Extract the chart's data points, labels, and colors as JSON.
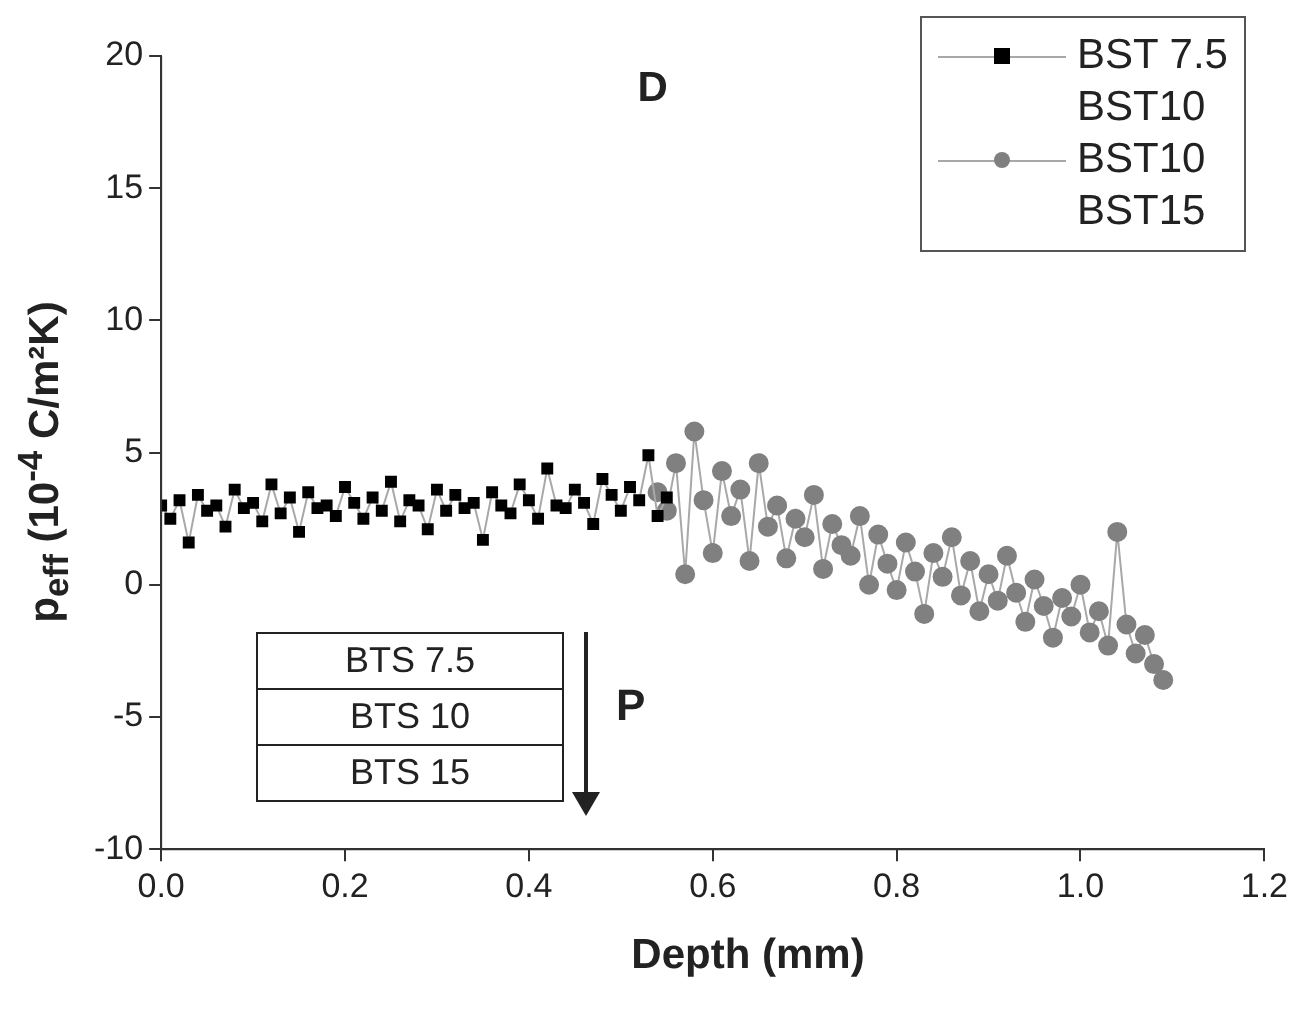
{
  "chart_data": {
    "type": "line",
    "title": "D",
    "xlabel": "Depth (mm)",
    "ylabel": "p$_{eff}$ (10$^{-4}$ C/m²K)",
    "annotations": [
      "BTS 7.5",
      "BTS 10",
      "BTS 15",
      "P"
    ],
    "xlim": [
      0,
      1.2
    ],
    "xticks": [
      {
        "value": 0,
        "label": "0.0"
      },
      {
        "value": 0.2,
        "label": "0.2"
      },
      {
        "value": 0.4,
        "label": "0.4"
      },
      {
        "value": 0.6,
        "label": "0.6"
      },
      {
        "value": 0.8,
        "label": "0.8"
      },
      {
        "value": 1,
        "label": "1.0"
      },
      {
        "value": 1.2,
        "label": "1.2"
      }
    ],
    "ylim": [
      -10,
      20
    ],
    "yticks": [
      -10,
      -5,
      0,
      5,
      10,
      15,
      20
    ],
    "grid": false,
    "legend": "top right",
    "line_style": "solid",
    "series": [
      {
        "name": "BST 7.5\nBST10",
        "color": "#000000",
        "marker": "square",
        "x": [
          0,
          0.01,
          0.02,
          0.03,
          0.04,
          0.05,
          0.06,
          0.07,
          0.08,
          0.09,
          0.1,
          0.11,
          0.12,
          0.13,
          0.14,
          0.15,
          0.16,
          0.17,
          0.18,
          0.19,
          0.2,
          0.21,
          0.22,
          0.23,
          0.24,
          0.25,
          0.26,
          0.27,
          0.28,
          0.29,
          0.3,
          0.31,
          0.32,
          0.33,
          0.34,
          0.35,
          0.36,
          0.37,
          0.38,
          0.39,
          0.4,
          0.41,
          0.42,
          0.43,
          0.44,
          0.45,
          0.46,
          0.47,
          0.48,
          0.49,
          0.5,
          0.51,
          0.52,
          0.53,
          0.54,
          0.55
        ],
        "values": [
          3.0,
          2.5,
          3.2,
          1.6,
          3.4,
          2.8,
          3.0,
          2.2,
          3.6,
          2.9,
          3.1,
          2.4,
          3.8,
          2.7,
          3.3,
          2.0,
          3.5,
          2.9,
          3.0,
          2.6,
          3.7,
          3.1,
          2.5,
          3.3,
          2.8,
          3.9,
          2.4,
          3.2,
          3.0,
          2.1,
          3.6,
          2.8,
          3.4,
          2.9,
          3.1,
          1.7,
          3.5,
          3.0,
          2.7,
          3.8,
          3.2,
          2.5,
          4.4,
          3.0,
          2.9,
          3.6,
          3.1,
          2.3,
          4.0,
          3.4,
          2.8,
          3.7,
          3.2,
          4.9,
          2.6,
          3.3
        ]
      },
      {
        "name": "BST10\nBST15",
        "color": "#808080",
        "marker": "circle",
        "x": [
          0.54,
          0.55,
          0.56,
          0.57,
          0.58,
          0.59,
          0.6,
          0.61,
          0.62,
          0.63,
          0.64,
          0.65,
          0.66,
          0.67,
          0.68,
          0.69,
          0.7,
          0.71,
          0.72,
          0.73,
          0.74,
          0.75,
          0.76,
          0.77,
          0.78,
          0.79,
          0.8,
          0.81,
          0.82,
          0.83,
          0.84,
          0.85,
          0.86,
          0.87,
          0.88,
          0.89,
          0.9,
          0.91,
          0.92,
          0.93,
          0.94,
          0.95,
          0.96,
          0.97,
          0.98,
          0.99,
          1,
          1.01,
          1.02,
          1.03,
          1.04,
          1.05,
          1.06,
          1.07,
          1.08,
          1.09
        ],
        "values": [
          3.5,
          2.8,
          4.6,
          0.4,
          5.8,
          3.2,
          1.2,
          4.3,
          2.6,
          3.6,
          0.9,
          4.6,
          2.2,
          3.0,
          1.0,
          2.5,
          1.8,
          3.4,
          0.6,
          2.3,
          1.5,
          1.1,
          2.6,
          0.0,
          1.9,
          0.8,
          -0.2,
          1.6,
          0.5,
          -1.1,
          1.2,
          0.3,
          1.8,
          -0.4,
          0.9,
          -1.0,
          0.4,
          -0.6,
          1.1,
          -0.3,
          -1.4,
          0.2,
          -0.8,
          -2.0,
          -0.5,
          -1.2,
          0.0,
          -1.8,
          -1.0,
          -2.3,
          2.0,
          -1.5,
          -2.6,
          -1.9,
          -3.0,
          -3.6
        ]
      }
    ]
  }
}
